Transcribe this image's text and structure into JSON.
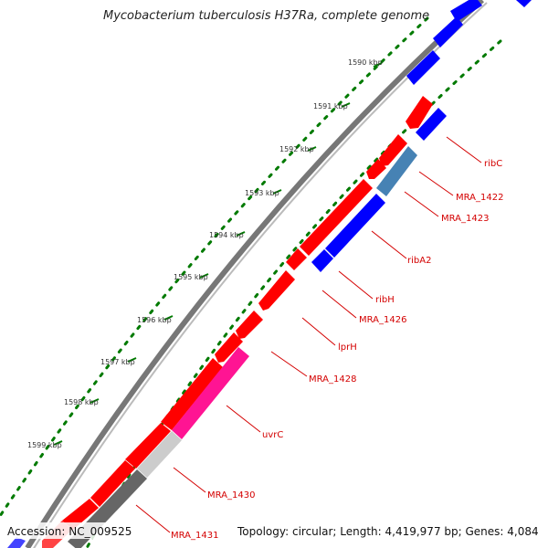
{
  "title": "Mycobacterium tuberculosis H37Ra, complete genome",
  "scale_ticks": [
    "1590 kbp",
    "1591 kbp",
    "1592 kbp",
    "1593 kbp",
    "1594 kbp",
    "1595 kbp",
    "1596 kbp",
    "1597 kbp",
    "1598 kbp",
    "1599 kbp"
  ],
  "gene_labels": [
    "ribC",
    "MRA_1422",
    "MRA_1423",
    "ribA2",
    "ribH",
    "MRA_1426",
    "lprH",
    "MRA_1428",
    "uvrC",
    "MRA_1430",
    "MRA_1431"
  ],
  "colors": {
    "forward_gene": "#ff0000",
    "reverse_gene": "#0000ff",
    "steelblue_gene": "#4682b4",
    "pink_gene": "#ff1493",
    "gray_gene": "#777777",
    "backbone": "#888888",
    "gc_dots": "#007a00",
    "label": "#d40000"
  },
  "footer": {
    "accession": "Accession: NC_009525",
    "summary": "Topology: circular; Length: 4,419,977 bp; Genes: 4,084"
  }
}
